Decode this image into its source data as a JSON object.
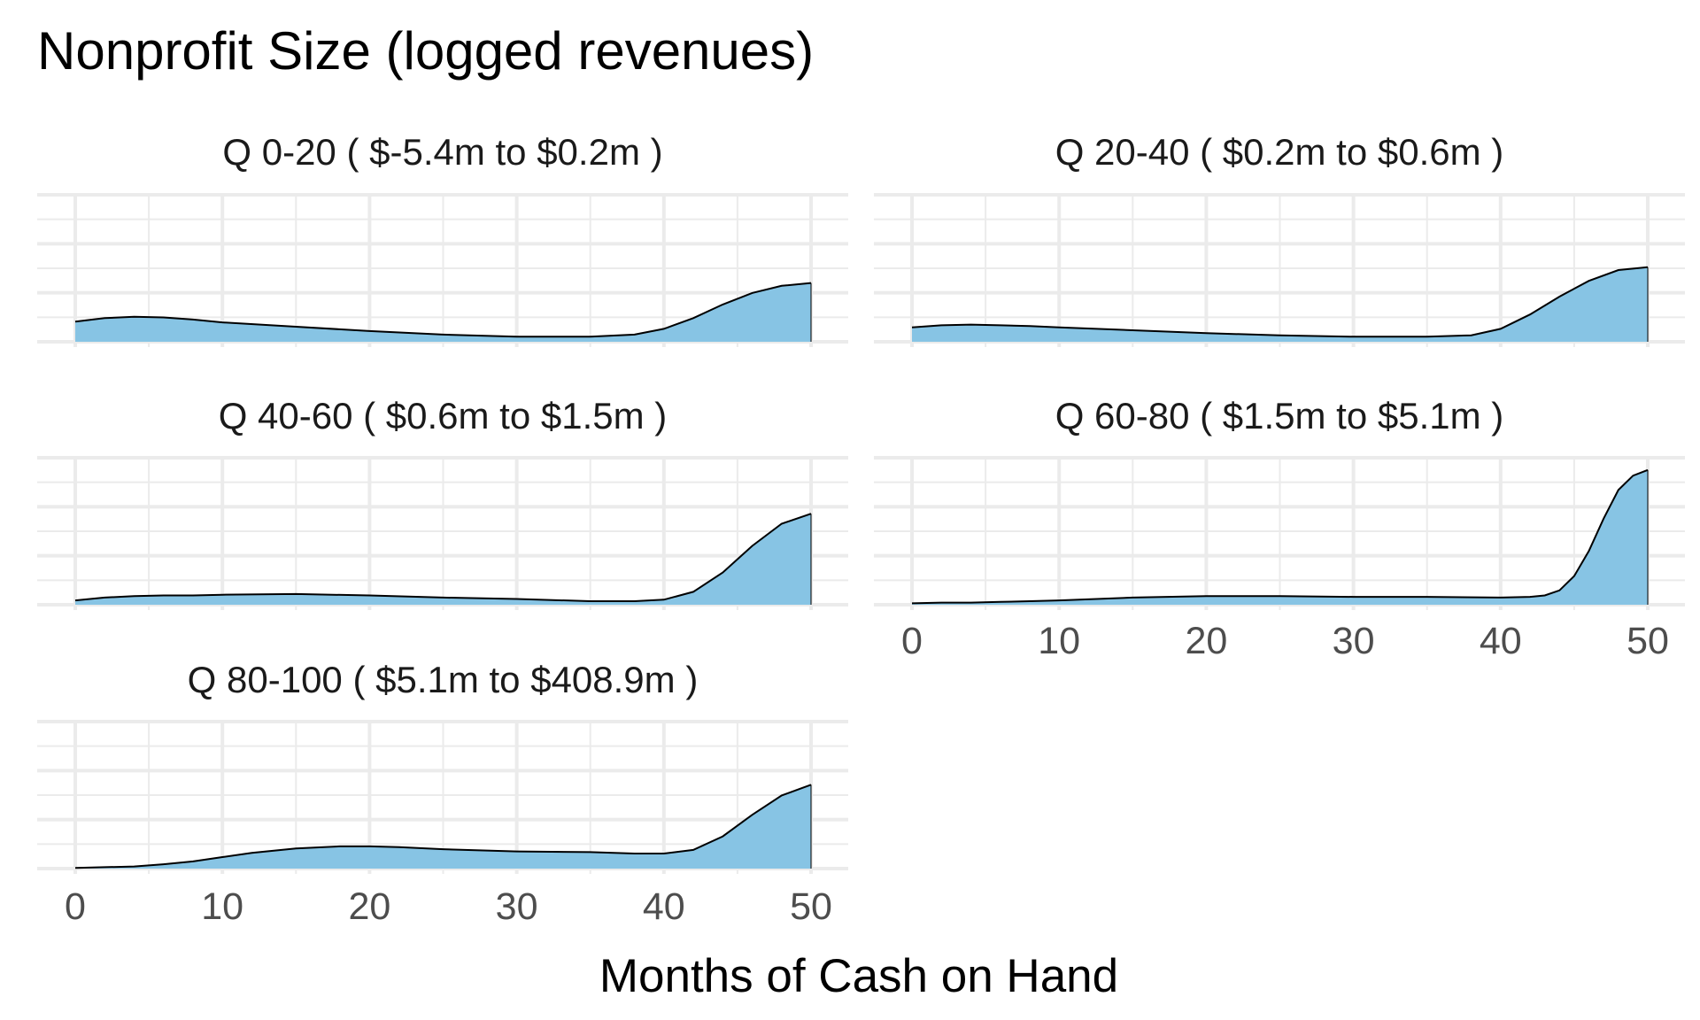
{
  "colors": {
    "density_fill": "#87c4e4",
    "density_line": "#000000",
    "grid": "#ebebeb",
    "background": "#ffffff"
  },
  "chart_data": {
    "type": "area",
    "subtype": "faceted density",
    "title": "Nonprofit Size (logged revenues)",
    "xlabel": "Months of Cash on Hand",
    "ylabel": "",
    "xlim": [
      0,
      50
    ],
    "x_ticks": [
      "0",
      "10",
      "20",
      "30",
      "40",
      "50"
    ],
    "y_tick_labels_shown": false,
    "grid": true,
    "legend": "none",
    "facet_layout": "2 columns, 3 rows",
    "panels": [
      {
        "quintile": "Q 0-20",
        "range": "( $-5.4m to $0.2m )",
        "x": [
          0,
          2,
          4,
          6,
          8,
          10,
          15,
          20,
          25,
          30,
          35,
          38,
          40,
          42,
          44,
          46,
          48,
          50
        ],
        "density": [
          0.028,
          0.033,
          0.035,
          0.034,
          0.031,
          0.027,
          0.021,
          0.015,
          0.01,
          0.007,
          0.007,
          0.01,
          0.018,
          0.033,
          0.052,
          0.068,
          0.078,
          0.082
        ]
      },
      {
        "quintile": "Q 20-40",
        "range": "( $0.2m to $0.6m )",
        "x": [
          0,
          2,
          4,
          6,
          8,
          10,
          15,
          20,
          25,
          30,
          35,
          38,
          40,
          42,
          44,
          46,
          48,
          50
        ],
        "density": [
          0.02,
          0.023,
          0.024,
          0.023,
          0.022,
          0.02,
          0.016,
          0.012,
          0.009,
          0.007,
          0.007,
          0.009,
          0.018,
          0.038,
          0.063,
          0.085,
          0.1,
          0.104
        ]
      },
      {
        "quintile": "Q 40-60",
        "range": "( $0.6m to $1.5m )",
        "x": [
          0,
          2,
          4,
          6,
          8,
          10,
          15,
          20,
          25,
          30,
          35,
          38,
          40,
          42,
          44,
          46,
          48,
          50
        ],
        "density": [
          0.006,
          0.01,
          0.012,
          0.013,
          0.013,
          0.014,
          0.015,
          0.013,
          0.01,
          0.008,
          0.005,
          0.005,
          0.007,
          0.018,
          0.045,
          0.082,
          0.113,
          0.127
        ]
      },
      {
        "quintile": "Q 60-80",
        "range": "( $1.5m to $5.1m )",
        "x": [
          0,
          2,
          4,
          6,
          8,
          10,
          15,
          20,
          25,
          30,
          35,
          40,
          42,
          43,
          44,
          45,
          46,
          47,
          48,
          49,
          50
        ],
        "density": [
          0.002,
          0.003,
          0.003,
          0.004,
          0.005,
          0.006,
          0.01,
          0.012,
          0.012,
          0.011,
          0.011,
          0.01,
          0.011,
          0.013,
          0.02,
          0.04,
          0.075,
          0.12,
          0.16,
          0.18,
          0.188
        ]
      },
      {
        "quintile": "Q 80-100",
        "range": "( $5.1m to $408.9m )",
        "x": [
          0,
          2,
          4,
          6,
          8,
          10,
          12,
          15,
          18,
          20,
          22,
          25,
          30,
          35,
          38,
          40,
          42,
          44,
          46,
          48,
          50
        ],
        "density": [
          0.001,
          0.002,
          0.003,
          0.006,
          0.01,
          0.016,
          0.022,
          0.028,
          0.031,
          0.031,
          0.03,
          0.027,
          0.024,
          0.023,
          0.021,
          0.021,
          0.026,
          0.045,
          0.075,
          0.102,
          0.117
        ]
      }
    ]
  }
}
